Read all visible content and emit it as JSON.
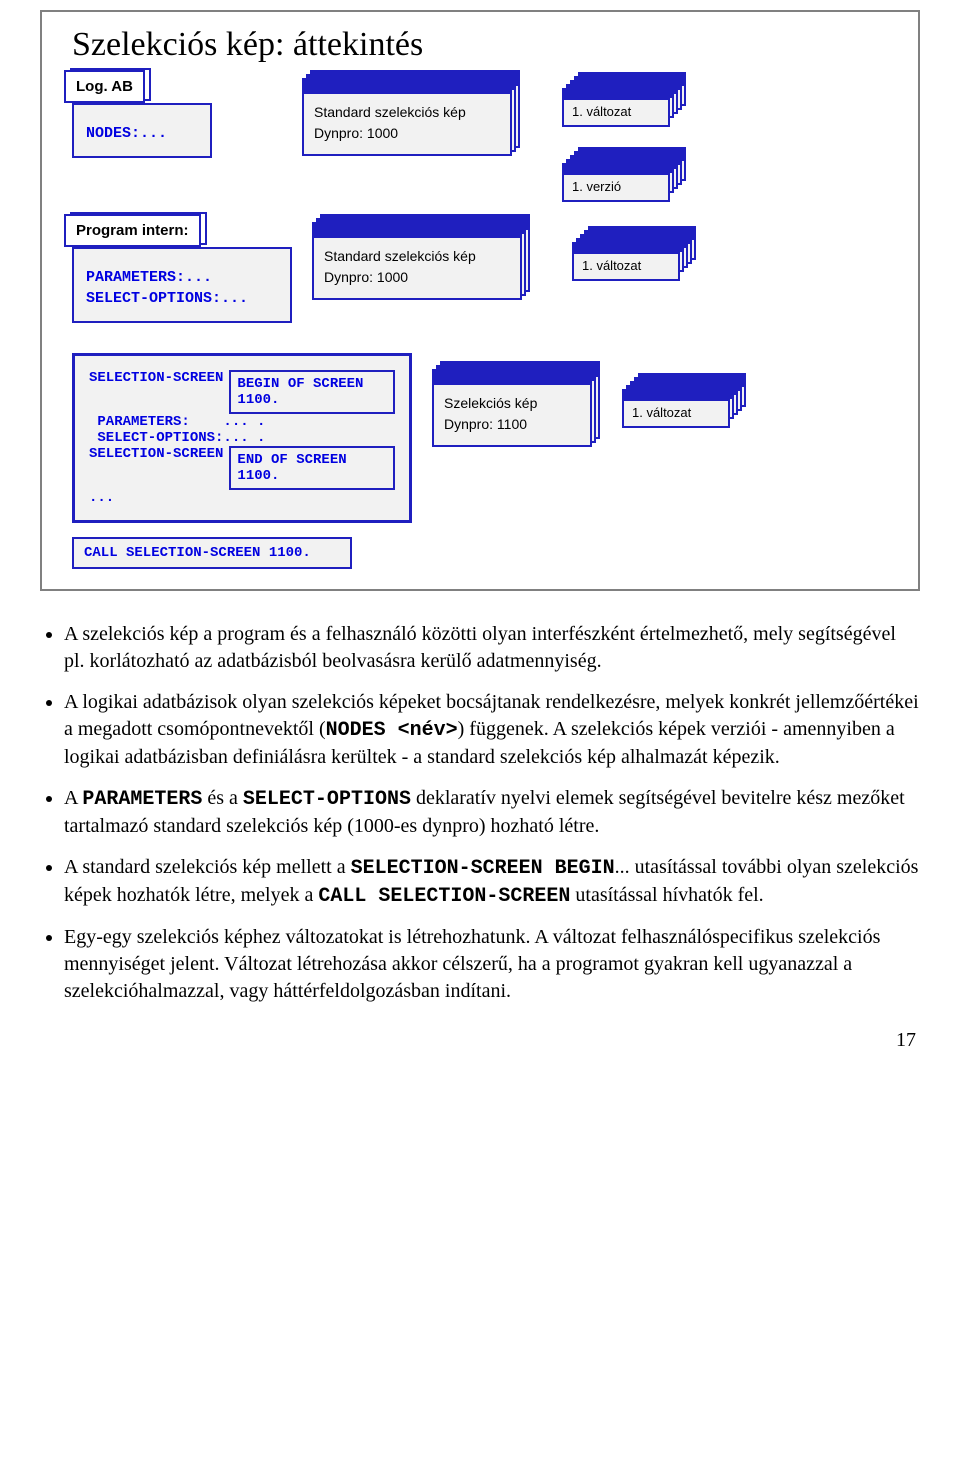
{
  "title": "Szelekciós kép: áttekintés",
  "row1": {
    "logab": {
      "title": "Log. AB",
      "line1": "NODES:..."
    },
    "screen": {
      "title": "Standard szelekciós kép",
      "dynpro": "Dynpro:  1000"
    },
    "variant": "1. változat",
    "version": "1. verzió"
  },
  "row2": {
    "progint": {
      "title": "Program intern:",
      "l1": "PARAMETERS:...",
      "l2": "SELECT-OPTIONS:..."
    },
    "screen": {
      "title": "Standard szelekciós kép",
      "dynpro": "Dynpro:  1000"
    },
    "variant": "1. változat"
  },
  "row3": {
    "code": {
      "l1a": "SELECTION-SCREEN",
      "l1b": "BEGIN OF SCREEN 1100.",
      "l2": " PARAMETERS:    ... .",
      "l3": " SELECT-OPTIONS:... .",
      "l4a": "SELECTION-SCREEN",
      "l4b": "END OF SCREEN 1100.",
      "l5": "..."
    },
    "call": "CALL SELECTION-SCREEN 1100.",
    "screen": {
      "title": "Szelekciós kép",
      "dynpro": "Dynpro:  1100"
    },
    "variant": "1. változat"
  },
  "bullets": [
    "A szelekciós kép a program és a felhasználó közötti olyan interfészként értelmezhető, mely segítségével pl. korlátozható az adatbázisból beolvasásra kerülő adatmennyiség.",
    "A logikai adatbázisok olyan szelekciós képeket bocsájtanak rendelkezésre, melyek konkrét jellemzőértékei a megadott csomópontnevektől (<MONO>NODES &lt;név&gt;</MONO>) függenek. A szelekciós képek verziói - amennyiben a logikai adatbázisban definiálásra kerültek - a standard szelekciós kép alhalmazát képezik.",
    "A <MONO>PARAMETERS</MONO> és a <MONO>SELECT-OPTIONS</MONO> deklaratív nyelvi elemek segítségével bevitelre kész mezőket tartalmazó standard szelekciós kép (1000-es dynpro) hozható létre.",
    "A standard szelekciós kép mellett a <MONO>SELECTION-SCREEN BEGIN</MONO>... utasítással további olyan szelekciós képek hozhatók létre, melyek a <MONO>CALL SELECTION-SCREEN</MONO> utasítással hívhatók fel.",
    "Egy-egy szelekciós képhez változatokat is létrehozhatunk. A változat felhasználóspecifikus szelekciós mennyiséget jelent. Változat létrehozása akkor célszerű, ha a programot gyakran kell ugyanazzal a szelekcióhalmazzal, vagy háttérfeldolgozásban indítani."
  ],
  "pagenum": "17",
  "colors": {
    "blue": "#1f1fbf",
    "grey": "#f2f2f2",
    "framegrey": "#808080"
  }
}
